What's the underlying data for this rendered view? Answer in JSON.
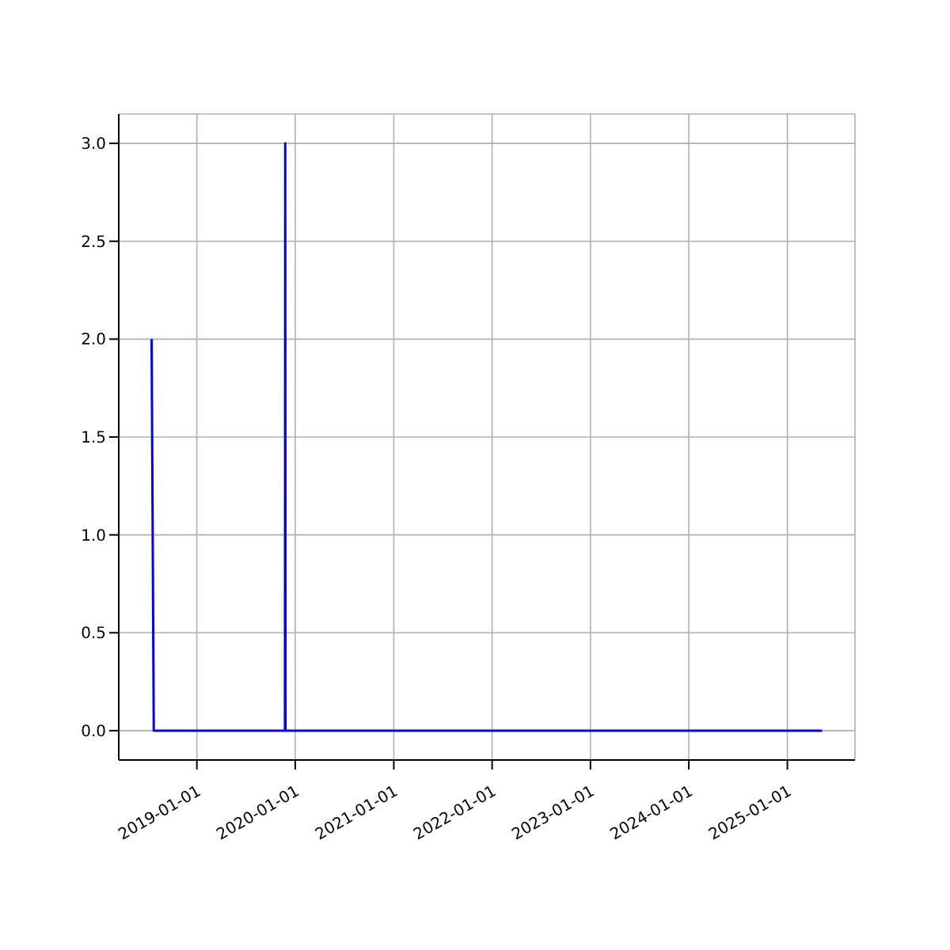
{
  "chart_data": {
    "type": "line",
    "x": [
      "2018-07-17",
      "2018-07-25",
      "2019-11-24",
      "2019-11-25",
      "2019-11-26",
      "2025-05-10"
    ],
    "series": [
      {
        "color": "#0000ff",
        "values": [
          2,
          0,
          0,
          3,
          0,
          0
        ]
      }
    ],
    "xlim": [
      "2018-03-17",
      "2025-09-09"
    ],
    "xticks": [
      {
        "value": "2019-01-01",
        "label": "2019-01-01"
      },
      {
        "value": "2020-01-01",
        "label": "2020-01-01"
      },
      {
        "value": "2021-01-01",
        "label": "2021-01-01"
      },
      {
        "value": "2022-01-01",
        "label": "2022-01-01"
      },
      {
        "value": "2023-01-01",
        "label": "2023-01-01"
      },
      {
        "value": "2024-01-01",
        "label": "2024-01-01"
      },
      {
        "value": "2025-01-01",
        "label": "2025-01-01"
      }
    ],
    "ylim": [
      -0.15,
      3.15
    ],
    "yticks": [
      {
        "value": 0,
        "label": "0.0"
      },
      {
        "value": 0.5,
        "label": "0.5"
      },
      {
        "value": 1,
        "label": "1.0"
      },
      {
        "value": 1.5,
        "label": "1.5"
      },
      {
        "value": 2,
        "label": "2.0"
      },
      {
        "value": 2.5,
        "label": "2.5"
      },
      {
        "value": 3,
        "label": "3.0"
      }
    ],
    "grid": true
  }
}
